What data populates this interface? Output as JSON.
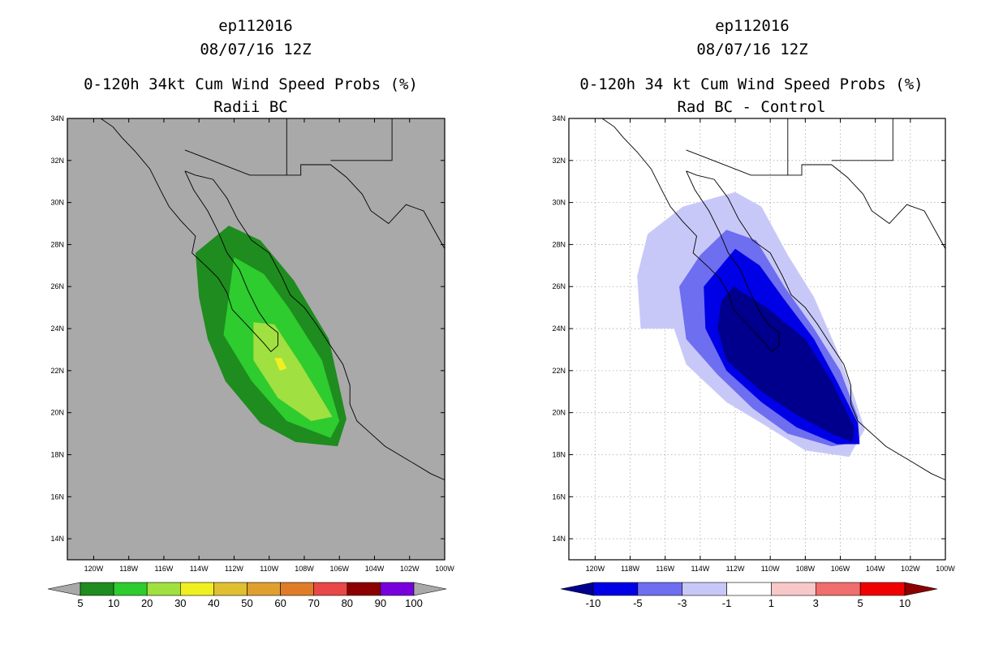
{
  "chart_data": [
    {
      "type": "heatmap",
      "storm_id": "ep112016",
      "date": "08/07/16 12Z",
      "title": "0-120h 34kt Cum Wind Speed Probs (%)",
      "subtitle": "Radii BC",
      "lon_range": [
        -121.5,
        -100
      ],
      "lat_range": [
        13,
        34
      ],
      "grid": false,
      "background": "#a9a9a9",
      "lat_ticks": [
        "14N",
        "16N",
        "18N",
        "20N",
        "22N",
        "24N",
        "26N",
        "28N",
        "30N",
        "32N",
        "34N"
      ],
      "lon_ticks": [
        "120W",
        "118W",
        "116W",
        "114W",
        "112W",
        "110W",
        "108W",
        "106W",
        "104W",
        "102W",
        "100W"
      ],
      "colorbar": {
        "labels": [
          "5",
          "10",
          "20",
          "30",
          "40",
          "50",
          "60",
          "70",
          "80",
          "90",
          "100"
        ],
        "colors": [
          "#1e8c1e",
          "#2ecc2e",
          "#a0e040",
          "#f0f020",
          "#e0c030",
          "#e0a030",
          "#e07c28",
          "#e84848",
          "#8c0000",
          "#7800dc"
        ],
        "low_color": "#a9a9a9",
        "high_color": "#a9a9a9"
      },
      "contours": [
        {
          "level": 5,
          "color": "#1e8c1e",
          "points": [
            [
              -114.2,
              27.6
            ],
            [
              -112.3,
              28.9
            ],
            [
              -110.5,
              28.2
            ],
            [
              -108.6,
              26.3
            ],
            [
              -106.6,
              23.5
            ],
            [
              -105.6,
              19.7
            ],
            [
              -106.1,
              18.4
            ],
            [
              -108.5,
              18.6
            ],
            [
              -110.5,
              19.5
            ],
            [
              -112.5,
              21.5
            ],
            [
              -113.5,
              23.5
            ],
            [
              -114.0,
              25.5
            ]
          ]
        },
        {
          "level": 10,
          "color": "#2ecc2e",
          "points": [
            [
              -112.0,
              27.4
            ],
            [
              -110.3,
              26.6
            ],
            [
              -108.9,
              25.0
            ],
            [
              -107.0,
              22.5
            ],
            [
              -106.0,
              19.6
            ],
            [
              -106.5,
              18.8
            ],
            [
              -109.0,
              19.6
            ],
            [
              -111.0,
              21.5
            ],
            [
              -112.6,
              23.7
            ]
          ]
        },
        {
          "level": 20,
          "color": "#a0e040",
          "points": [
            [
              -110.9,
              24.3
            ],
            [
              -109.7,
              24.2
            ],
            [
              -108.2,
              22.3
            ],
            [
              -106.4,
              19.8
            ],
            [
              -107.6,
              19.6
            ],
            [
              -109.5,
              20.7
            ],
            [
              -110.9,
              22.5
            ]
          ]
        },
        {
          "level": 30,
          "color": "#f0f020",
          "points": [
            [
              -109.7,
              22.6
            ],
            [
              -109.3,
              22.6
            ],
            [
              -109.0,
              22.1
            ],
            [
              -109.4,
              22.0
            ]
          ]
        }
      ]
    },
    {
      "type": "heatmap",
      "storm_id": "ep112016",
      "date": "08/07/16 12Z",
      "title": "0-120h 34 kt Cum Wind Speed Probs (%)",
      "subtitle": "Rad BC - Control",
      "lon_range": [
        -121.5,
        -100
      ],
      "lat_range": [
        13,
        34
      ],
      "grid": true,
      "background": "#ffffff",
      "lat_ticks": [
        "14N",
        "16N",
        "18N",
        "20N",
        "22N",
        "24N",
        "26N",
        "28N",
        "30N",
        "32N",
        "34N"
      ],
      "lon_ticks": [
        "120W",
        "118W",
        "116W",
        "114W",
        "112W",
        "110W",
        "108W",
        "106W",
        "104W",
        "102W",
        "100W"
      ],
      "colorbar": {
        "labels": [
          "-10",
          "-5",
          "-3",
          "-1",
          "1",
          "3",
          "5",
          "10"
        ],
        "colors": [
          "#0000e6",
          "#6e6ef0",
          "#c8c8f8",
          "#ffffff",
          "#f8c8c8",
          "#f06e6e",
          "#f00000"
        ],
        "low_color": "#00008c",
        "high_color": "#8c0000"
      },
      "contours": [
        {
          "level": -1,
          "color": "#c8c8f8",
          "points": [
            [
              -115.0,
              29.8
            ],
            [
              -112.0,
              30.5
            ],
            [
              -110.5,
              29.8
            ],
            [
              -109.0,
              27.5
            ],
            [
              -107.5,
              25.5
            ],
            [
              -106.2,
              23.0
            ],
            [
              -105.3,
              21.0
            ],
            [
              -104.6,
              19.2
            ],
            [
              -105.5,
              17.9
            ],
            [
              -108.0,
              18.2
            ],
            [
              -110.5,
              19.5
            ],
            [
              -112.5,
              20.5
            ],
            [
              -114.8,
              22.3
            ],
            [
              -115.5,
              24.0
            ],
            [
              -117.4,
              24.0
            ],
            [
              -117.6,
              26.5
            ],
            [
              -117.0,
              28.5
            ]
          ]
        },
        {
          "level": -3,
          "color": "#6e6ef0",
          "points": [
            [
              -112.5,
              28.7
            ],
            [
              -110.8,
              28.2
            ],
            [
              -109.2,
              26.0
            ],
            [
              -107.5,
              24.0
            ],
            [
              -106.0,
              22.0
            ],
            [
              -105.0,
              19.8
            ],
            [
              -104.9,
              18.6
            ],
            [
              -106.5,
              18.4
            ],
            [
              -109.0,
              19.0
            ],
            [
              -111.0,
              20.2
            ],
            [
              -113.0,
              21.8
            ],
            [
              -114.8,
              23.5
            ],
            [
              -115.2,
              26.0
            ],
            [
              -114.0,
              27.5
            ]
          ]
        },
        {
          "level": -5,
          "color": "#0000e6",
          "points": [
            [
              -112.0,
              27.8
            ],
            [
              -110.6,
              27.0
            ],
            [
              -109.3,
              25.5
            ],
            [
              -107.5,
              23.5
            ],
            [
              -106.2,
              21.5
            ],
            [
              -105.0,
              19.5
            ],
            [
              -104.9,
              18.5
            ],
            [
              -106.2,
              18.5
            ],
            [
              -108.5,
              19.3
            ],
            [
              -110.5,
              20.5
            ],
            [
              -112.5,
              22.0
            ],
            [
              -113.7,
              24.0
            ],
            [
              -113.8,
              26.0
            ]
          ]
        },
        {
          "level": -10,
          "color": "#00008c",
          "points": [
            [
              -112.1,
              26.0
            ],
            [
              -110.2,
              25.0
            ],
            [
              -108.0,
              23.5
            ],
            [
              -106.5,
              21.5
            ],
            [
              -105.2,
              19.3
            ],
            [
              -105.3,
              18.6
            ],
            [
              -106.5,
              19.0
            ],
            [
              -108.5,
              19.9
            ],
            [
              -110.5,
              21.0
            ],
            [
              -112.5,
              22.5
            ],
            [
              -113.0,
              24.0
            ],
            [
              -112.8,
              25.3
            ]
          ]
        }
      ]
    }
  ]
}
